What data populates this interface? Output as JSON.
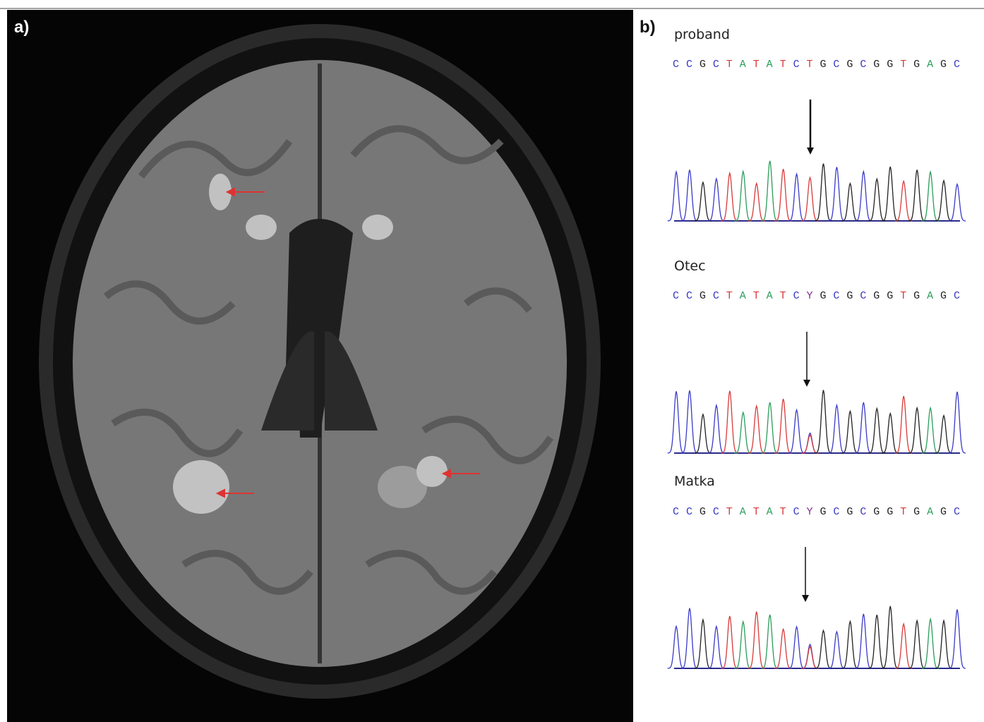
{
  "panel_a": {
    "label": "a)"
  },
  "panel_b": {
    "label": "b)",
    "traces": [
      {
        "name": "proband",
        "sequence": "CCGCTATATCTGCGCGGTGAGC"
      },
      {
        "name": "Otec",
        "sequence": "CCGCTATATCYGCGCGGTGAGC"
      },
      {
        "name": "Matka",
        "sequence": "CCGCTATATCYGCGCGGTGAGC"
      }
    ]
  }
}
